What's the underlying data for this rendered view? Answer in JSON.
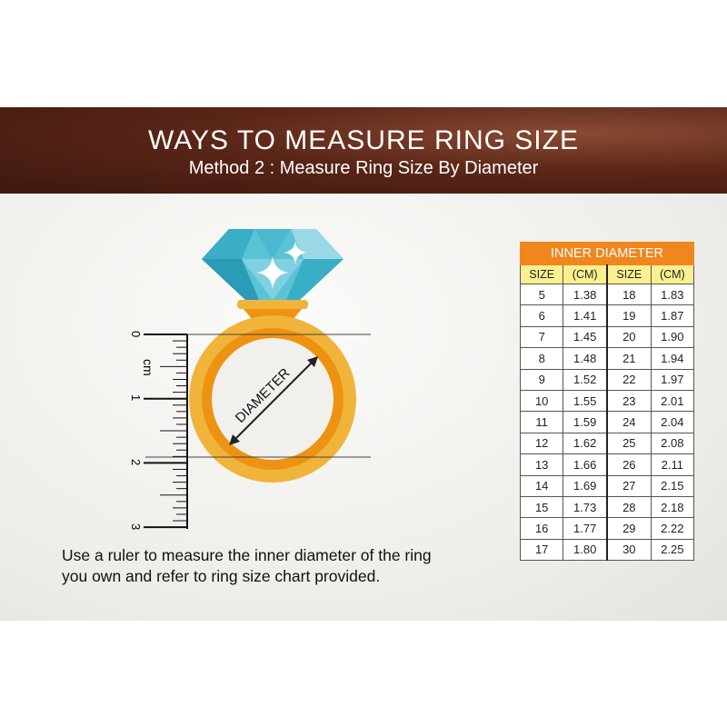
{
  "header": {
    "title": "WAYS TO MEASURE RING SIZE",
    "subtitle": "Method 2 : Measure Ring Size By Diameter"
  },
  "illustration": {
    "diameter_label": "DIAMETER",
    "ruler_unit": "cm",
    "ruler_labels": [
      "0",
      "1",
      "2",
      "3"
    ],
    "colors": {
      "diamond": "#5bc3d6",
      "band_outer": "#f0b43a",
      "band_inner": "#ee9212"
    }
  },
  "caption": {
    "line1": "Use a ruler to measure the inner diameter of the ring",
    "line2": "you own and refer to ring size chart provided."
  },
  "table": {
    "title": "INNER DIAMETER",
    "columns": [
      "SIZE",
      "(CM)",
      "SIZE",
      "(CM)"
    ],
    "rows": [
      [
        "5",
        "1.38",
        "18",
        "1.83"
      ],
      [
        "6",
        "1.41",
        "19",
        "1.87"
      ],
      [
        "7",
        "1.45",
        "20",
        "1.90"
      ],
      [
        "8",
        "1.48",
        "21",
        "1.94"
      ],
      [
        "9",
        "1.52",
        "22",
        "1.97"
      ],
      [
        "10",
        "1.55",
        "23",
        "2.01"
      ],
      [
        "11",
        "1.59",
        "24",
        "2.04"
      ],
      [
        "12",
        "1.62",
        "25",
        "2.08"
      ],
      [
        "13",
        "1.66",
        "26",
        "2.11"
      ],
      [
        "14",
        "1.69",
        "27",
        "2.15"
      ],
      [
        "15",
        "1.73",
        "28",
        "2.18"
      ],
      [
        "16",
        "1.77",
        "29",
        "2.22"
      ],
      [
        "17",
        "1.80",
        "30",
        "2.25"
      ]
    ]
  }
}
